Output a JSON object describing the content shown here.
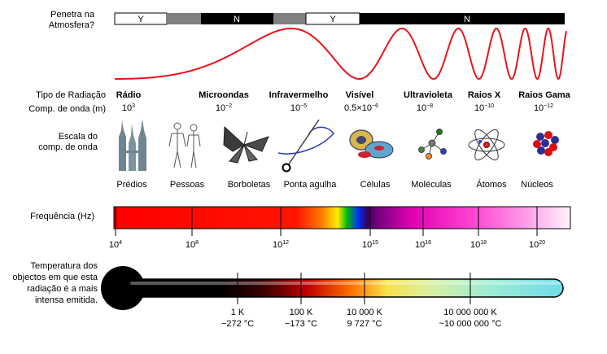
{
  "labels": {
    "atmosphere": "Penetra na Atmosfera?",
    "radiation_type": "Tipo de Radiação",
    "wavelength": "Comp. de onda (m)",
    "scale": "Escala do comp. de onda",
    "frequency": "Frequência (Hz)",
    "temperature": "Temperatura dos objectos em que esta radiação é a mais intensa emitida."
  },
  "atmosphere_bar": [
    {
      "text": "Y",
      "color": "#ffffff"
    },
    {
      "text": "",
      "color": "#808080"
    },
    {
      "text": "N",
      "color": "#000000"
    },
    {
      "text": "",
      "color": "#808080"
    },
    {
      "text": "Y",
      "color": "#ffffff"
    },
    {
      "text": "N",
      "color": "#000000"
    }
  ],
  "radiation_types": [
    {
      "name": "Rádio",
      "base": "10",
      "exp": "3"
    },
    {
      "name": "Microondas",
      "base": "10",
      "exp": "−2"
    },
    {
      "name": "Infravermelho",
      "base": "10",
      "exp": "−5"
    },
    {
      "name": "Visível",
      "base": "0.5×10",
      "exp": "−6"
    },
    {
      "name": "Ultravioleta",
      "base": "10",
      "exp": "−8"
    },
    {
      "name": "Raios X",
      "base": "10",
      "exp": "−10"
    },
    {
      "name": "Raios Gama",
      "base": "10",
      "exp": "−12"
    }
  ],
  "scale_objects": [
    "Prédios",
    "Pessoas",
    "Borboletas",
    "Ponta agulha",
    "Células",
    "Moléculas",
    "Átomos",
    "Núcleos"
  ],
  "icons": [
    "buildings-icon",
    "people-icon",
    "butterfly-icon",
    "needle-icon",
    "cells-icon",
    "molecule-icon",
    "atom-icon",
    "nucleus-icon"
  ],
  "frequency_ticks": [
    {
      "base": "10",
      "exp": "4"
    },
    {
      "base": "10",
      "exp": "8"
    },
    {
      "base": "10",
      "exp": "12"
    },
    {
      "base": "10",
      "exp": "15"
    },
    {
      "base": "10",
      "exp": "16"
    },
    {
      "base": "10",
      "exp": "18"
    },
    {
      "base": "10",
      "exp": "20"
    }
  ],
  "temperature_ticks": [
    {
      "k": "1 K",
      "c": "−272 °C"
    },
    {
      "k": "100 K",
      "c": "−173 °C"
    },
    {
      "k": "10 000 K",
      "c": "9 727 °C"
    },
    {
      "k": "10 000 000 K",
      "c": "~10 000 000 °C"
    }
  ],
  "colors": {
    "wave": "#e8141c",
    "thermometer_end": "#6fdcec"
  }
}
